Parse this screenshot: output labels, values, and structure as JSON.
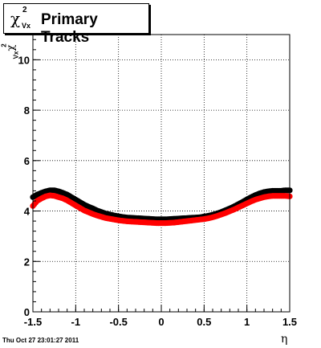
{
  "title": {
    "symbol": "χ",
    "superscript": "2",
    "subscript": "Vx",
    "text": "Primary Tracks"
  },
  "y_axis_label": {
    "symbol": "χ",
    "superscript": "2",
    "subscript": "Vx"
  },
  "x_axis_label": "η",
  "footer_timestamp": "Thu Oct 27 23:01:27 2011",
  "chart_data": {
    "type": "scatter",
    "xlim": [
      -1.5,
      1.5
    ],
    "ylim": [
      0,
      11
    ],
    "x_ticks": [
      "-1.5",
      "-1",
      "-0.5",
      "0",
      "0.5",
      "1",
      "1.5"
    ],
    "y_ticks": [
      "0",
      "2",
      "4",
      "6",
      "8",
      "10"
    ],
    "grid": true,
    "series": [
      {
        "color": "#000000",
        "x": [
          -1.5,
          -1.45,
          -1.4,
          -1.35,
          -1.3,
          -1.25,
          -1.2,
          -1.15,
          -1.1,
          -1.05,
          -1.0,
          -0.95,
          -0.9,
          -0.85,
          -0.8,
          -0.75,
          -0.7,
          -0.65,
          -0.6,
          -0.55,
          -0.5,
          -0.45,
          -0.4,
          -0.35,
          -0.3,
          -0.25,
          -0.2,
          -0.15,
          -0.1,
          -0.05,
          0.0,
          0.05,
          0.1,
          0.15,
          0.2,
          0.25,
          0.3,
          0.35,
          0.4,
          0.45,
          0.5,
          0.55,
          0.6,
          0.65,
          0.7,
          0.75,
          0.8,
          0.85,
          0.9,
          0.95,
          1.0,
          1.05,
          1.1,
          1.15,
          1.2,
          1.25,
          1.3,
          1.35,
          1.4,
          1.45,
          1.5
        ],
        "y": [
          4.55,
          4.65,
          4.72,
          4.78,
          4.82,
          4.82,
          4.78,
          4.72,
          4.65,
          4.55,
          4.45,
          4.35,
          4.25,
          4.17,
          4.1,
          4.02,
          3.96,
          3.9,
          3.86,
          3.82,
          3.79,
          3.76,
          3.74,
          3.73,
          3.72,
          3.71,
          3.7,
          3.69,
          3.68,
          3.67,
          3.67,
          3.67,
          3.68,
          3.69,
          3.7,
          3.71,
          3.72,
          3.73,
          3.74,
          3.75,
          3.78,
          3.81,
          3.85,
          3.9,
          3.96,
          4.03,
          4.1,
          4.18,
          4.27,
          4.36,
          4.46,
          4.55,
          4.63,
          4.7,
          4.75,
          4.78,
          4.8,
          4.8,
          4.8,
          4.82,
          4.82
        ]
      },
      {
        "color": "#ff0000",
        "x": [
          -1.5,
          -1.45,
          -1.4,
          -1.35,
          -1.3,
          -1.25,
          -1.2,
          -1.15,
          -1.1,
          -1.05,
          -1.0,
          -0.95,
          -0.9,
          -0.85,
          -0.8,
          -0.75,
          -0.7,
          -0.65,
          -0.6,
          -0.55,
          -0.5,
          -0.45,
          -0.4,
          -0.35,
          -0.3,
          -0.25,
          -0.2,
          -0.15,
          -0.1,
          -0.05,
          0.0,
          0.05,
          0.1,
          0.15,
          0.2,
          0.25,
          0.3,
          0.35,
          0.4,
          0.45,
          0.5,
          0.55,
          0.6,
          0.65,
          0.7,
          0.75,
          0.8,
          0.85,
          0.9,
          0.95,
          1.0,
          1.05,
          1.1,
          1.15,
          1.2,
          1.25,
          1.3,
          1.35,
          1.4,
          1.45,
          1.5
        ],
        "y": [
          4.2,
          4.4,
          4.5,
          4.58,
          4.62,
          4.6,
          4.55,
          4.5,
          4.42,
          4.32,
          4.22,
          4.12,
          4.02,
          3.95,
          3.88,
          3.82,
          3.77,
          3.72,
          3.69,
          3.66,
          3.63,
          3.61,
          3.59,
          3.58,
          3.57,
          3.56,
          3.55,
          3.54,
          3.53,
          3.52,
          3.52,
          3.52,
          3.53,
          3.54,
          3.56,
          3.58,
          3.6,
          3.62,
          3.64,
          3.66,
          3.68,
          3.71,
          3.75,
          3.8,
          3.86,
          3.92,
          3.99,
          4.06,
          4.14,
          4.22,
          4.3,
          4.38,
          4.45,
          4.5,
          4.55,
          4.58,
          4.6,
          4.6,
          4.6,
          4.6,
          4.58
        ]
      }
    ]
  }
}
